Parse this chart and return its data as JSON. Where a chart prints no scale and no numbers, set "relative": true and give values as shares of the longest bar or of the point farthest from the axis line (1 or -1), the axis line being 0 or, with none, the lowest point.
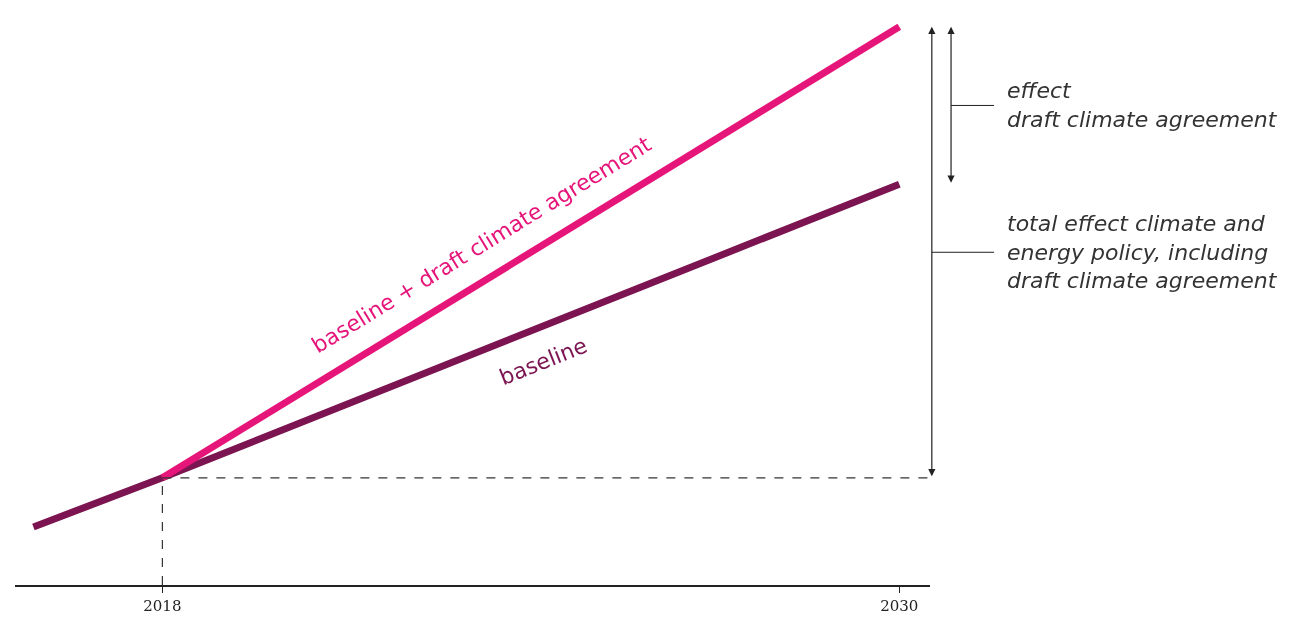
{
  "chart_data": {
    "type": "line",
    "relative": true,
    "series": [
      {
        "name": "baseline",
        "color": "#7b1450",
        "x": [
          2015.9,
          2018,
          2030
        ],
        "values": [
          0.104,
          0.192,
          0.718
        ]
      },
      {
        "name": "baseline + draft climate agreement",
        "color": "#e6157a",
        "x": [
          2018,
          2030
        ],
        "values": [
          0.192,
          1
        ]
      }
    ],
    "xlim": [
      2015.6,
      2030.5
    ],
    "xticks": [
      2018,
      2030
    ],
    "ref_lines": [
      {
        "axis": "x",
        "value": 2018,
        "line_style": "dashed",
        "color": "#333333"
      },
      {
        "axis": "y",
        "value": 0.192,
        "line_style": "dashed",
        "color": "#333333"
      }
    ],
    "annotations": [
      "effect\ndraft climate agreement",
      "total effect climate and\nenergy policy, including\ndraft climate agreement"
    ],
    "legend": false,
    "grid": false,
    "marker": "none",
    "line_style": "solid"
  }
}
